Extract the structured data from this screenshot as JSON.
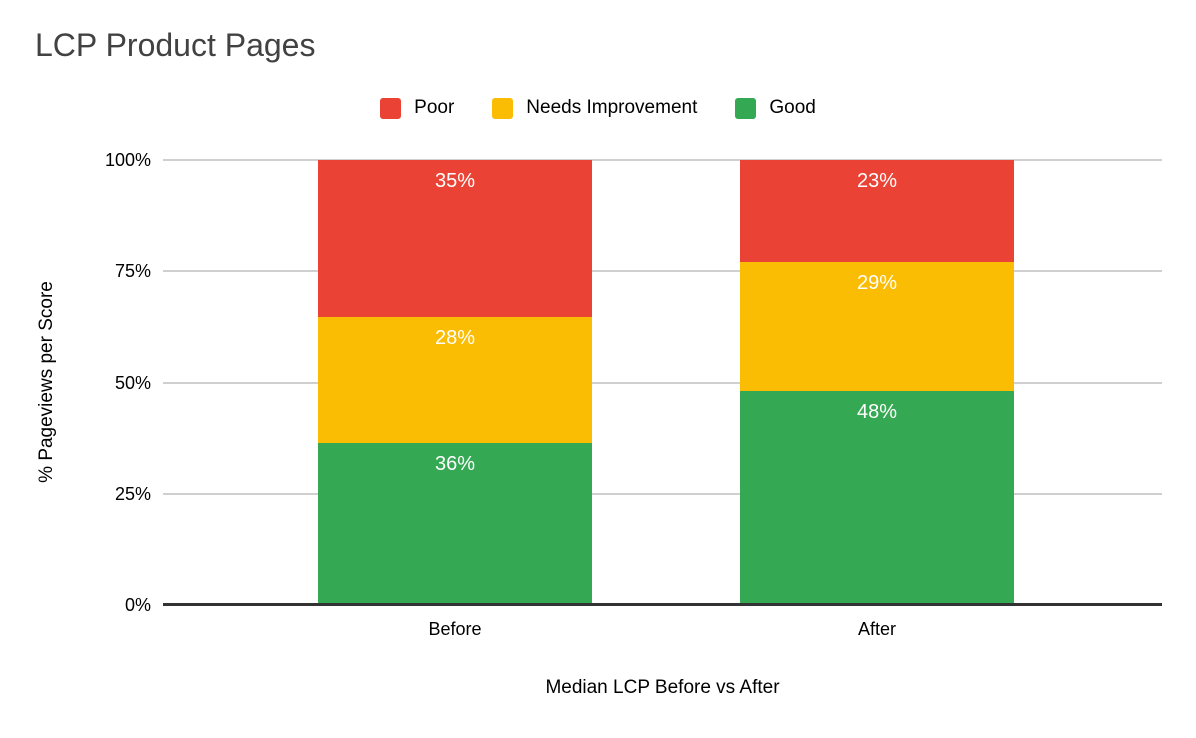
{
  "chart_data": {
    "type": "bar",
    "variant": "stacked-100-percent",
    "title": "LCP Product Pages",
    "xlabel": "Median LCP Before vs After",
    "ylabel": "% Pageviews per Score",
    "categories": [
      "Before",
      "After"
    ],
    "series": [
      {
        "name": "Poor",
        "color": "#EA4335",
        "values": [
          35,
          23
        ]
      },
      {
        "name": "Needs Improvement",
        "color": "#FBBC04",
        "values": [
          28,
          29
        ]
      },
      {
        "name": "Good",
        "color": "#34A853",
        "values": [
          36,
          48
        ]
      }
    ],
    "stack_order_top_to_bottom": [
      "Poor",
      "Needs Improvement",
      "Good"
    ],
    "data_label_suffix": "%",
    "y_ticks": [
      "0%",
      "25%",
      "50%",
      "75%",
      "100%"
    ],
    "ylim": [
      0,
      100
    ],
    "grid": true,
    "legend_position": "top",
    "colors": {
      "title_text": "#424242",
      "axis_text": "#000000",
      "data_label_text": "#ffffff",
      "gridline": "#d0d0d0",
      "baseline": "#333333",
      "background": "#ffffff"
    }
  }
}
